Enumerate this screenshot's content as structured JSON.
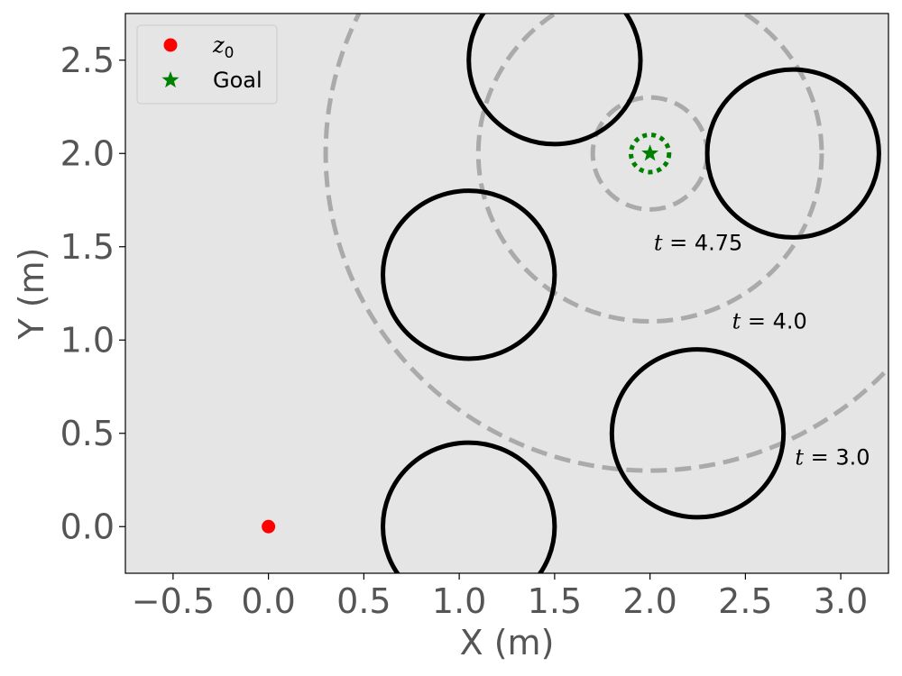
{
  "chart_data": {
    "type": "scatter",
    "xlabel": "X (m)",
    "ylabel": "Y (m)",
    "xlim": [
      -0.75,
      3.25
    ],
    "ylim": [
      -0.25,
      2.75
    ],
    "xticks": [
      -0.5,
      0.0,
      0.5,
      1.0,
      1.5,
      2.0,
      2.5,
      3.0
    ],
    "yticks": [
      0.0,
      0.5,
      1.0,
      1.5,
      2.0,
      2.5
    ],
    "xtick_labels": [
      "−0.5",
      "0.0",
      "0.5",
      "1.0",
      "1.5",
      "2.0",
      "2.5",
      "3.0"
    ],
    "ytick_labels": [
      "0.0",
      "0.5",
      "1.0",
      "1.5",
      "2.0",
      "2.5"
    ],
    "grid": false,
    "background": "#e5e5e5",
    "legend": {
      "placement": "top-left",
      "entries": [
        {
          "label_main": "z",
          "label_sub": "0",
          "marker": "circle",
          "color": "#ff0000"
        },
        {
          "label_main": "Goal",
          "label_sub": "",
          "marker": "star",
          "color": "#008000"
        }
      ]
    },
    "start": {
      "x": 0.0,
      "y": 0.0,
      "color": "#ff0000"
    },
    "goal": {
      "x": 2.0,
      "y": 2.0,
      "r": 0.1,
      "color": "#008000"
    },
    "obstacles": [
      {
        "x": 1.5,
        "y": 2.5,
        "r": 0.45
      },
      {
        "x": 2.75,
        "y": 2.0,
        "r": 0.45
      },
      {
        "x": 1.05,
        "y": 1.35,
        "r": 0.45
      },
      {
        "x": 2.25,
        "y": 0.5,
        "r": 0.45
      },
      {
        "x": 1.05,
        "y": 0.0,
        "r": 0.45
      }
    ],
    "obstacle_color": "#000000",
    "reach_sets": [
      {
        "t_label": "t = ",
        "t_value": "4.75",
        "x": 2.0,
        "y": 2.0,
        "r": 0.3,
        "label_x": 2.02,
        "label_y": 1.52
      },
      {
        "t_label": "t = ",
        "t_value": "4.0",
        "x": 2.0,
        "y": 2.0,
        "r": 0.9,
        "label_x": 2.43,
        "label_y": 1.1
      },
      {
        "t_label": "t = ",
        "t_value": "3.0",
        "x": 2.0,
        "y": 2.0,
        "r": 1.7,
        "label_x": 2.76,
        "label_y": 0.37
      }
    ],
    "reach_color": "#aaaaaa"
  }
}
